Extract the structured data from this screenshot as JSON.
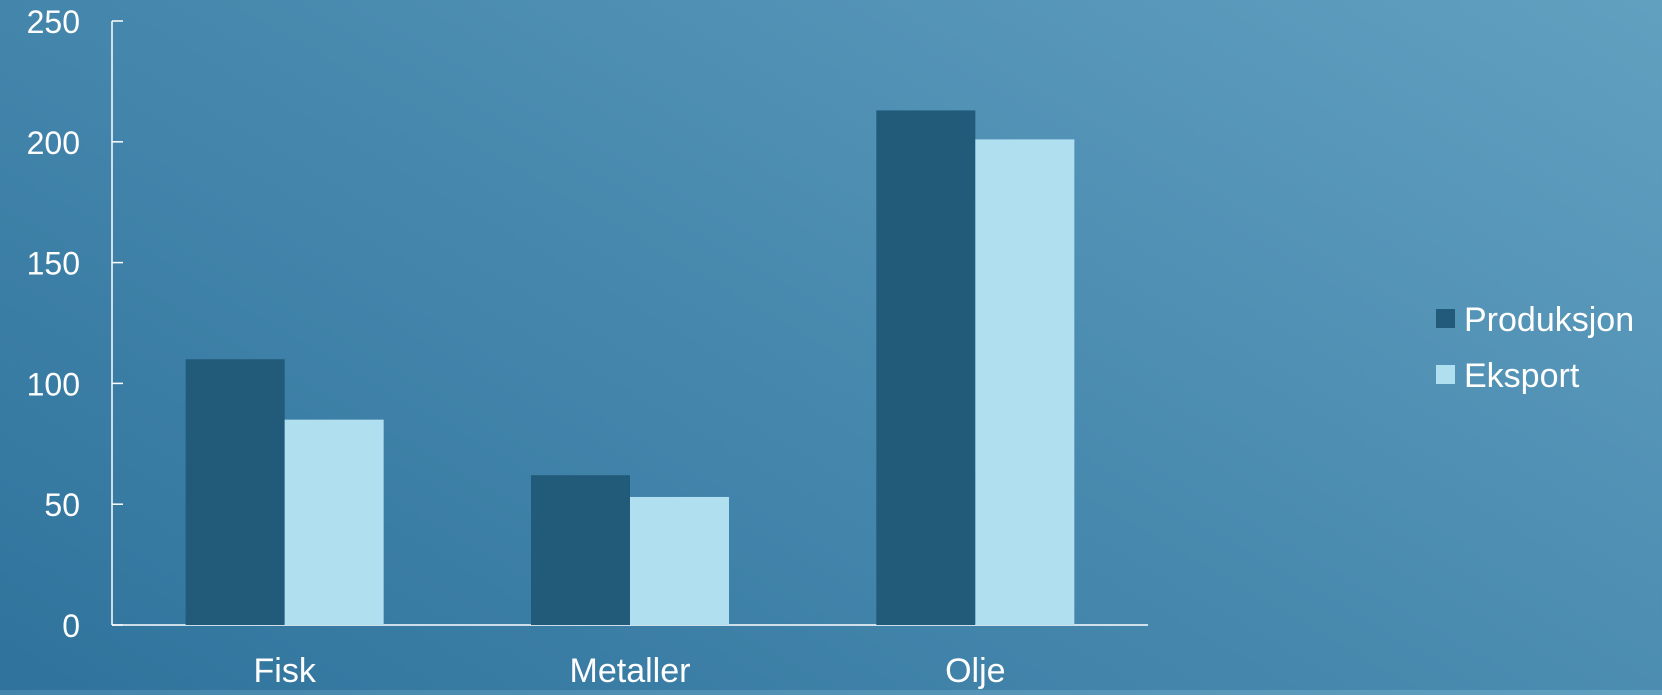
{
  "chart_data": {
    "type": "bar",
    "categories": [
      "Fisk",
      "Metaller",
      "Olje"
    ],
    "series": [
      {
        "name": "Produksjon",
        "values": [
          110,
          62,
          213
        ],
        "color": "#225a7a"
      },
      {
        "name": "Eksport",
        "values": [
          85,
          53,
          201
        ],
        "color": "#b0dff0"
      }
    ],
    "ylim": [
      0,
      250
    ],
    "yticks": [
      0,
      50,
      100,
      150,
      200,
      250
    ],
    "grid": false,
    "legend_position": "right",
    "axis_color": "#ffffff"
  }
}
